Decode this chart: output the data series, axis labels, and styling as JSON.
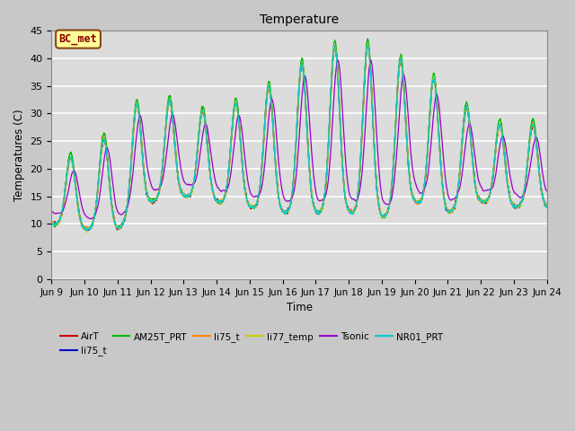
{
  "title": "Temperature",
  "ylabel": "Temperatures (C)",
  "xlabel": "Time",
  "ylim": [
    0,
    45
  ],
  "yticks": [
    0,
    5,
    10,
    15,
    20,
    25,
    30,
    35,
    40,
    45
  ],
  "xtick_labels": [
    "Jun 9",
    "Jun 10",
    "Jun 11",
    "Jun 12",
    "Jun 13",
    "Jun 14",
    "Jun 15",
    "Jun 16",
    "Jun 17",
    "Jun 18",
    "Jun 19",
    "Jun 20",
    "Jun 21",
    "Jun 22",
    "Jun 23",
    "Jun 24"
  ],
  "fig_bg": "#c8c8c8",
  "plot_bg": "#dcdcdc",
  "grid_color": "#ffffff",
  "annotation_text": "BC_met",
  "annotation_color": "#8b0000",
  "annotation_bg": "#ffff99",
  "annotation_edge": "#8b4513",
  "colors": {
    "AirT": "#cc0000",
    "li75_t_b": "#0000cc",
    "AM25T_PRT": "#00bb00",
    "li75_t": "#ff8800",
    "li77_temp": "#cccc00",
    "Tsonic": "#9900cc",
    "NR01_PRT": "#00cccc"
  },
  "peak_envelope": [
    22,
    22,
    28,
    34,
    31,
    30,
    33,
    36,
    41,
    43,
    42,
    38,
    35,
    28,
    28,
    28
  ],
  "trough_envelope": [
    10,
    9,
    9,
    14,
    15,
    14,
    13,
    12,
    12,
    12,
    11,
    14,
    12,
    14,
    13,
    13
  ]
}
